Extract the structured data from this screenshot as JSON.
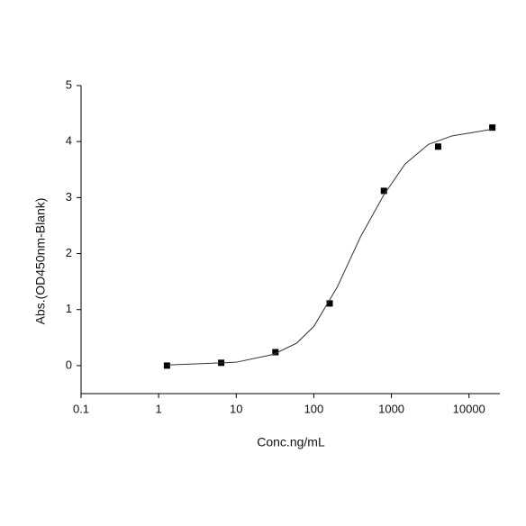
{
  "chart_data": {
    "type": "scatter",
    "x_label": "Conc.ng/mL",
    "y_label": "Abs.(OD450nm-Blank)",
    "xscale": "log",
    "xlim": [
      0.1,
      25000
    ],
    "ylim": [
      -0.5,
      5
    ],
    "xticks": [
      0.1,
      1,
      10,
      100,
      1000,
      10000
    ],
    "yticks": [
      0,
      1,
      2,
      3,
      4,
      5
    ],
    "grid": false,
    "series": [
      {
        "type": "scatter",
        "color": "#000000",
        "x": [
          1.28,
          6.4,
          32,
          160,
          800,
          4000,
          20000
        ],
        "values": [
          0,
          0.05,
          0.24,
          1.11,
          3.12,
          3.91,
          4.25
        ]
      },
      {
        "type": "line",
        "color": "#333333",
        "x": [
          1.28,
          3,
          10,
          30,
          60,
          100,
          200,
          400,
          800,
          1500,
          3000,
          6000,
          20000
        ],
        "values": [
          0.01,
          0.03,
          0.06,
          0.2,
          0.4,
          0.7,
          1.4,
          2.3,
          3.05,
          3.6,
          3.95,
          4.1,
          4.22
        ]
      }
    ]
  }
}
